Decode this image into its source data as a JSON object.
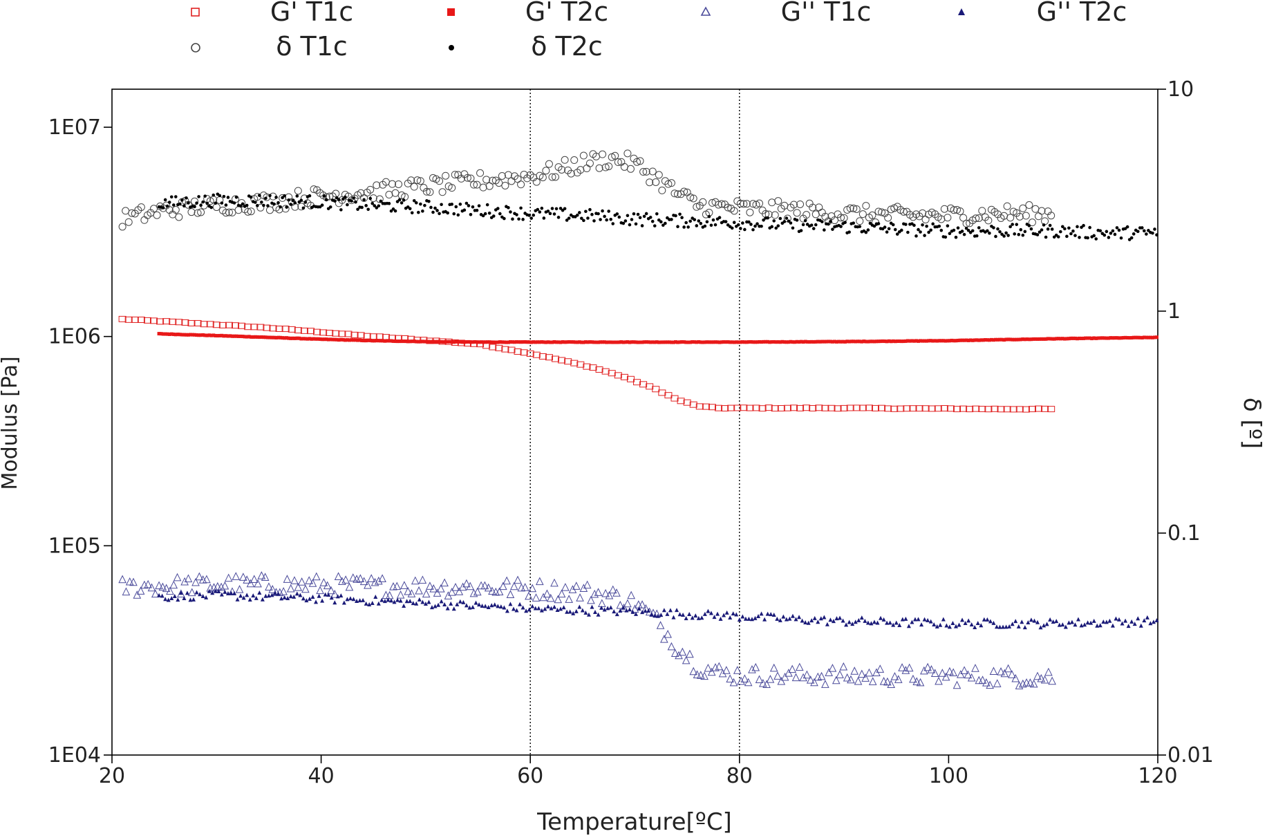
{
  "colors": {
    "gp_t1c": "#e02020",
    "gp_t2c": "#e81818",
    "gpp_t1c": "#4a4a9a",
    "gpp_t2c": "#1a1a78",
    "delta_t1c": "#444444",
    "delta_t2c": "#000000",
    "axis": "#000000",
    "refline": "#000000"
  },
  "chart_data": {
    "type": "scatter",
    "title": "",
    "xlabel": "Temperature[ºC]",
    "ylabel_left": "Modulus [Pa]",
    "ylabel_right": "δ [º]",
    "xlim": [
      20,
      120
    ],
    "ylim_left": [
      10000,
      15000000
    ],
    "ylim_right": [
      0.01,
      10
    ],
    "y_left_scale": "log",
    "y_right_scale": "log",
    "x_ticks": [
      20,
      40,
      60,
      80,
      100,
      120
    ],
    "x_tick_labels": [
      "20",
      "40",
      "60",
      "80",
      "100",
      "120"
    ],
    "y_left_ticks": [
      10000,
      100000,
      1000000,
      10000000
    ],
    "y_left_tick_labels": [
      "1E04",
      "1E05",
      "1E06",
      "1E07"
    ],
    "y_right_ticks": [
      0.01,
      0.1,
      1,
      10
    ],
    "y_right_tick_labels": [
      "0.01",
      "0.1",
      "1",
      "10"
    ],
    "reference_lines_x": [
      60,
      80
    ],
    "legend_position": "top",
    "series": [
      {
        "key": "gp_t1c",
        "name": "G' T1c",
        "marker": "open-square",
        "axis": "left",
        "x_range": [
          21,
          110
        ],
        "step": 0.6,
        "scatter": 0.002,
        "x": [
          21,
          25,
          30,
          35,
          40,
          45,
          50,
          55,
          60,
          63,
          66,
          69,
          72,
          74,
          76,
          78,
          80,
          85,
          90,
          95,
          100,
          105,
          110
        ],
        "values": [
          1210000,
          1180000,
          1140000,
          1100000,
          1050000,
          1000000,
          960000,
          920000,
          830000,
          770000,
          710000,
          640000,
          560000,
          500000,
          465000,
          455000,
          455000,
          455000,
          455000,
          453000,
          452000,
          450000,
          450000
        ]
      },
      {
        "key": "gp_t2c",
        "name": "G' T2c",
        "marker": "filled-square",
        "axis": "left",
        "x_range": [
          24.5,
          120
        ],
        "step": 0.2,
        "scatter": 0.001,
        "x": [
          24.5,
          30,
          35,
          40,
          45,
          50,
          55,
          60,
          70,
          80,
          90,
          100,
          110,
          120
        ],
        "values": [
          1030000,
          1010000,
          990000,
          970000,
          955000,
          945000,
          940000,
          940000,
          940000,
          940000,
          945000,
          955000,
          975000,
          990000
        ]
      },
      {
        "key": "gpp_t1c",
        "name": "G'' T1c",
        "marker": "open-triangle",
        "axis": "left",
        "x_range": [
          21,
          110
        ],
        "step": 0.35,
        "scatter": 0.045,
        "x": [
          21,
          25,
          30,
          35,
          40,
          45,
          50,
          55,
          60,
          65,
          68,
          70,
          72,
          74,
          76,
          78,
          80,
          85,
          90,
          95,
          100,
          105,
          110
        ],
        "values": [
          63000,
          64000,
          65000,
          65000,
          64500,
          64000,
          63500,
          63000,
          62000,
          60000,
          57000,
          53000,
          44000,
          33000,
          26500,
          24500,
          24000,
          23800,
          23800,
          23800,
          23700,
          23600,
          23500
        ]
      },
      {
        "key": "gpp_t2c",
        "name": "G'' T2c",
        "marker": "filled-triangle",
        "axis": "left",
        "x_range": [
          24.5,
          120
        ],
        "step": 0.3,
        "scatter": 0.02,
        "x": [
          24.5,
          30,
          35,
          40,
          45,
          50,
          55,
          60,
          65,
          70,
          75,
          80,
          85,
          90,
          95,
          100,
          105,
          110,
          115,
          120
        ],
        "values": [
          57000,
          58000,
          57000,
          56000,
          54500,
          53000,
          51500,
          50000,
          49000,
          48500,
          47000,
          46000,
          44500,
          43500,
          43000,
          42500,
          42500,
          42500,
          43000,
          43500
        ]
      },
      {
        "key": "delta_t1c",
        "name": "δ T1c",
        "marker": "open-circle",
        "axis": "right",
        "x_range": [
          21,
          110
        ],
        "step": 0.3,
        "scatter": 0.04,
        "x": [
          21,
          25,
          30,
          35,
          40,
          45,
          50,
          55,
          60,
          63,
          66,
          68,
          70,
          72,
          74,
          76,
          78,
          80,
          85,
          90,
          95,
          100,
          105,
          110
        ],
        "values": [
          2.6,
          2.85,
          3.0,
          3.1,
          3.3,
          3.45,
          3.65,
          3.85,
          4.05,
          4.35,
          4.75,
          4.85,
          4.6,
          4.0,
          3.4,
          3.0,
          2.95,
          2.9,
          2.85,
          2.75,
          2.7,
          2.7,
          2.75,
          2.75
        ]
      },
      {
        "key": "delta_t2c",
        "name": "δ T2c",
        "marker": "filled-circle",
        "axis": "right",
        "x_range": [
          24.5,
          120
        ],
        "step": 0.2,
        "scatter": 0.03,
        "x": [
          24.5,
          30,
          35,
          40,
          45,
          50,
          55,
          60,
          65,
          70,
          75,
          80,
          85,
          90,
          95,
          100,
          105,
          110,
          115,
          120
        ],
        "values": [
          3.05,
          3.15,
          3.15,
          3.1,
          3.0,
          2.95,
          2.85,
          2.75,
          2.7,
          2.6,
          2.55,
          2.5,
          2.45,
          2.4,
          2.35,
          2.3,
          2.3,
          2.3,
          2.25,
          2.25
        ]
      }
    ]
  }
}
